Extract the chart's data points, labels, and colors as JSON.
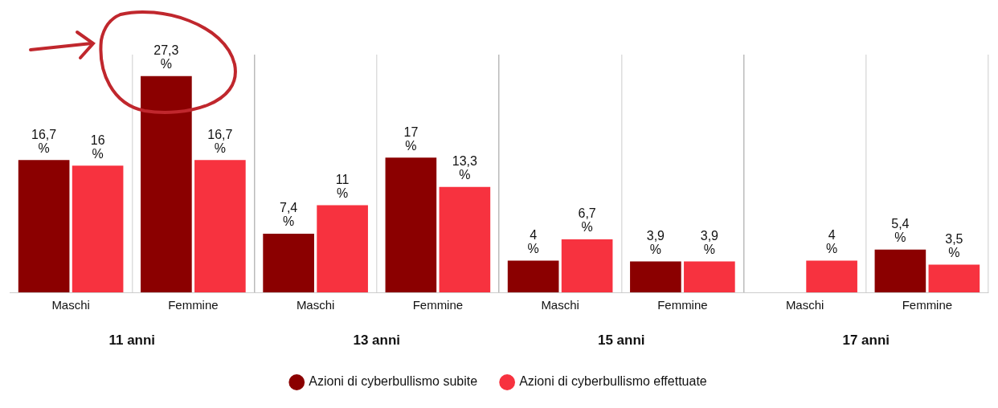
{
  "chart_data": {
    "type": "bar",
    "categories": [
      "Maschi",
      "Femmine",
      "Maschi",
      "Femmine",
      "Maschi",
      "Femmine",
      "Maschi",
      "Femmine"
    ],
    "series": [
      {
        "name": "Azioni di cyberbullismo subite",
        "color": "#8b0000",
        "values": [
          16.7,
          27.3,
          7.4,
          17,
          4,
          3.9,
          null,
          5.4
        ],
        "value_labels": [
          "16,7 %",
          "27,3 %",
          "7,4 %",
          "17 %",
          "4 %",
          "3,9 %",
          null,
          "5,4 %"
        ]
      },
      {
        "name": "Azioni di cyberbullismo effettuate",
        "color": "#f7323f",
        "values": [
          16,
          16.7,
          11,
          13.3,
          6.7,
          3.9,
          4,
          3.5
        ],
        "value_labels": [
          "16 %",
          "16,7 %",
          "11 %",
          "13,3 %",
          "6,7 %",
          "3,9 %",
          "4 %",
          "3,5 %"
        ]
      }
    ],
    "annotations": [
      "11 anni",
      "13 anni",
      "15 anni",
      "17 anni"
    ],
    "grid": "x",
    "legend": "bottom",
    "tick_labels": "x"
  }
}
